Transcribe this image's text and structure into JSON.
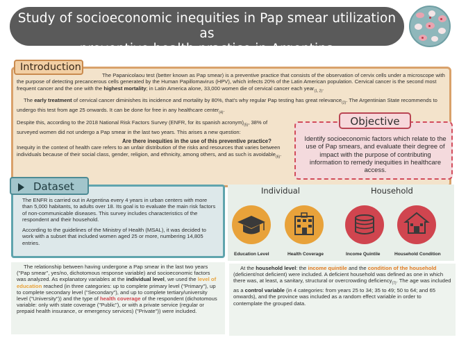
{
  "title": {
    "line1": "Study of socioeconomic inequities in Pap smear utilization as",
    "line2": "preventive health practice in Argentina"
  },
  "intro": {
    "heading": "Introduction",
    "p1_a": "The Papanicolaou test (better known as Pap smear) is a preventive practice that consists of the observation of cervix cells under a microscope with the purpose of detecting precancerous cells generated by the Human Papillomavirus (HPV), which infects 20% of the Latin American population. Cervical cancer is the second most frequent cancer and the one with the ",
    "p1_bold": "highest mortality",
    "p1_b": "; in Latin America alone, 33,000 women die of cervical cancer each year",
    "p1_ref": "(1, 2)",
    "p2_a": "The ",
    "p2_bold": "early treatment",
    "p2_b": " of cervical cancer diminishes its incidence and mortality by 80%, that's why regular Pap testing has great relevance",
    "p2_ref": "(2)",
    "p2_c": ". The Argentinian State recommends to undergo this test from age 25 onwards. It can be done for free in any healthcare center",
    "p2_ref2": "(4)",
    "p3": "Despite this, according to the 2018 National Risk Factors Survey (ENFR, for its spanish acronym)",
    "p3_ref": "(5)",
    "p3_b": ", 38% of surveyed women did not undergo a Pap smear in the last two years. This arises a new question:",
    "question": "Are there inequities in the use of this preventive practice?",
    "p4": "Inequity in the context of health care refers to an unfair distribution of the risks and resources that varies between individuals because of their social class, gender, religion, and ethnicity, among others, and as such is avoidable",
    "p4_ref": "(6)"
  },
  "objective": {
    "heading": "Objective",
    "text": "Identify socioeconomic factors which relate to the use of Pap smears, and evaluate their degree of impact with the purpose of contributing information to remedy inequities in healthcare access."
  },
  "dataset": {
    "heading": "Dataset",
    "p1": "The ENFR is carried out in Argentina every 4 years in urban centers with more than 5,000 habitants, to adults over 18. Its goal is to evaluate the main risk factors of non-communicable diseases. This survey includes characteristics of the respondent and their household.",
    "p2": "According to the guidelines of the Ministry of Health (MSAL), it was decided to work with a subset that included women aged 25 or more, numbering 14,805 entries."
  },
  "variables": {
    "individual_header": "Individual",
    "household_header": "Household",
    "labels": [
      "Education Level",
      "Health Coverage",
      "Income Quintile",
      "Household Condition"
    ]
  },
  "bottom_left": {
    "a": "The relationship between having undergone a Pap smear in the last two years (\"Pap smear\", yes/no, dichotomous response variable) and socioeconomic factors was analyzed. As explanatory variables at the ",
    "b1": "individual level",
    "c": ", we used the ",
    "hl1": "level of education",
    "d": " reached (in three categories: up to complete primary level (\"Primary\"), up to complete secondary level (\"Secondary\"), and up to complete tertiary/university level (\"University\")) and the type of ",
    "hl2": "health coverage",
    "e": " of the respondent (dichotomous variable: only with state coverage (\"Public\"), or with a private service (regular or prepaid health insurance, or emergency services) (\"Private\")) were included."
  },
  "bottom_right": {
    "a": "At the ",
    "b1": "household level",
    "c": ": the ",
    "hl1": "income quintile",
    "d": " and the ",
    "hl2": "condition of the household",
    "e": " (deficient/not deficient) were included. A deficient household was defined as one in which there was, at least, a sanitary, structural or overcrowding deficiency",
    "ref": "(7)",
    "f": ". The age was included as a ",
    "b2": "control variable",
    "g": " (in 4 categories: from years 25 to 34; 35 to 49; 50 to 64; and 65 onwards), and the province was included as a random effect variable in order to contemplate the grouped data."
  },
  "colors": {
    "banner": "#5a5a5a",
    "intro_border": "#d9a16a",
    "objective_border": "#d24b5b",
    "dataset_border": "#5fa4ad",
    "individual_icon": "#e8a23a",
    "household_icon": "#d0454f"
  }
}
